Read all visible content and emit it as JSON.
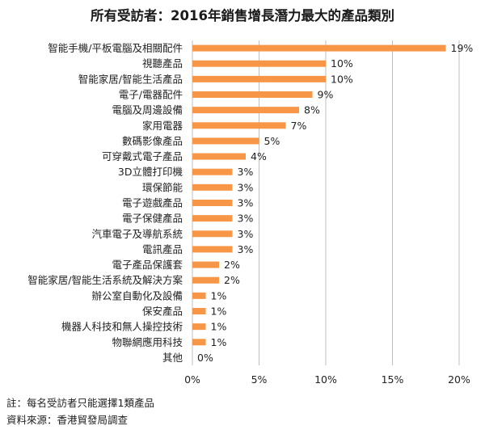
{
  "chart_data": {
    "type": "bar",
    "orientation": "horizontal",
    "title": "所有受訪者：2016年銷售增長潛力最大的產品類別",
    "categories": [
      "智能手機/平板電腦及相關配件",
      "視聽產品",
      "智能家居/智能生活產品",
      "電子/電器配件",
      "電腦及周邊設備",
      "家用電器",
      "數碼影像產品",
      "可穿戴式電子產品",
      "3D立體打印機",
      "環保節能",
      "電子遊戲產品",
      "電子保健產品",
      "汽車電子及導航系統",
      "電訊產品",
      "電子產品保護套",
      "智能家居/智能生活系統及解決方案",
      "辦公室自動化及設備",
      "保安產品",
      "機器人科技和無人操控技術",
      "物聯網應用科技",
      "其他"
    ],
    "values": [
      19,
      10,
      10,
      9,
      8,
      7,
      5,
      4,
      3,
      3,
      3,
      3,
      3,
      3,
      2,
      2,
      1,
      1,
      1,
      1,
      0
    ],
    "value_labels": [
      "19%",
      "10%",
      "10%",
      "9%",
      "8%",
      "7%",
      "5%",
      "4%",
      "3%",
      "3%",
      "3%",
      "3%",
      "3%",
      "3%",
      "2%",
      "2%",
      "1%",
      "1%",
      "1%",
      "1%",
      "0%"
    ],
    "xlim": [
      0,
      20
    ],
    "xticks": [
      0,
      5,
      10,
      15,
      20
    ],
    "xtick_labels": [
      "0%",
      "5%",
      "10%",
      "15%",
      "20%"
    ],
    "grid": "vertical",
    "bar_color": "#F79646",
    "grid_color": "#BFBFBF"
  },
  "notes": {
    "note": "註：每名受訪者只能選擇1類產品",
    "source": "資料來源：香港貿發局調查"
  }
}
